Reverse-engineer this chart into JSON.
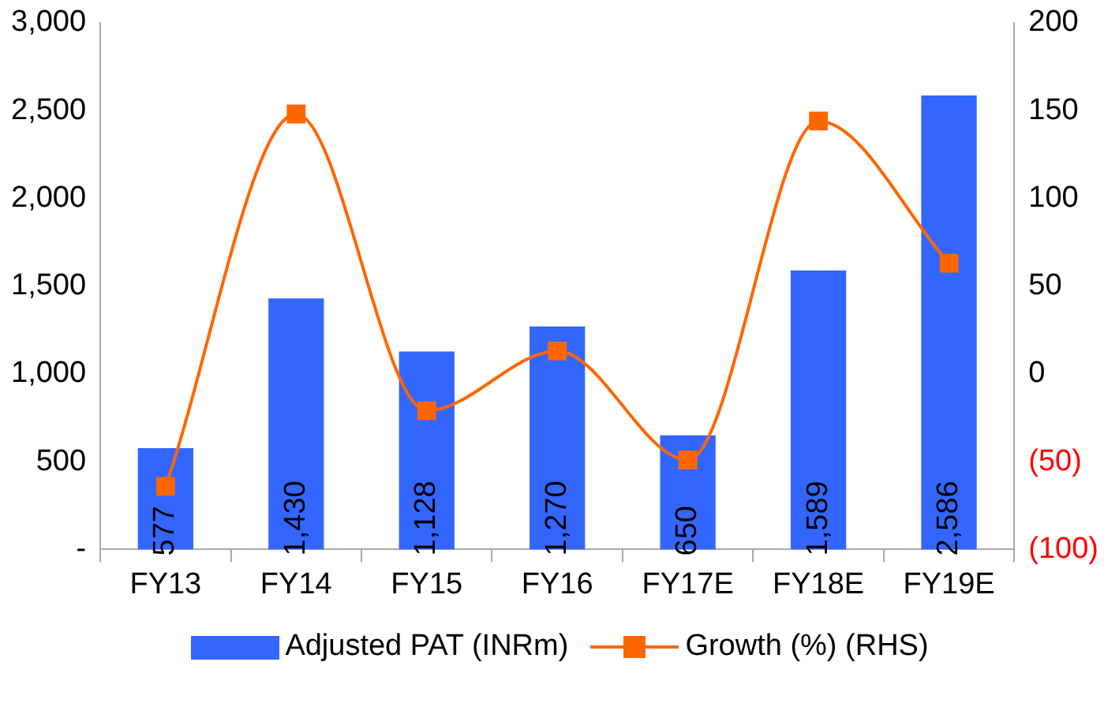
{
  "chart_data": {
    "type": "bar",
    "categories": [
      "FY13",
      "FY14",
      "FY15",
      "FY16",
      "FY17E",
      "FY18E",
      "FY19E"
    ],
    "series": [
      {
        "name": "Adjusted PAT (INRm)",
        "color": "#3366ff",
        "values": [
          577,
          1430,
          1128,
          1270,
          650,
          1589,
          2586
        ],
        "value_labels": [
          "577",
          "1,430",
          "1,128",
          "1,270",
          "650",
          "1,589",
          "2,586"
        ]
      },
      {
        "name": "Growth (%) (RHS)",
        "type": "line",
        "axis": "y2",
        "color": "#ff6600",
        "marker": "square",
        "values": [
          -64,
          148,
          -21,
          13,
          -49,
          144,
          63
        ]
      }
    ],
    "ylim": [
      0,
      3000
    ],
    "yticks": [
      {
        "value": 0,
        "label": "-"
      },
      {
        "value": 500,
        "label": "500"
      },
      {
        "value": 1000,
        "label": "1,000"
      },
      {
        "value": 1500,
        "label": "1,500"
      },
      {
        "value": 2000,
        "label": "2,000"
      },
      {
        "value": 2500,
        "label": "2,500"
      },
      {
        "value": 3000,
        "label": "3,000"
      }
    ],
    "y2lim": [
      -100,
      200
    ],
    "y2ticks": [
      {
        "value": -100,
        "label": "(100)"
      },
      {
        "value": -50,
        "label": "(50)"
      },
      0,
      50,
      100,
      150,
      200
    ],
    "grid": false,
    "legend": "bottom"
  }
}
